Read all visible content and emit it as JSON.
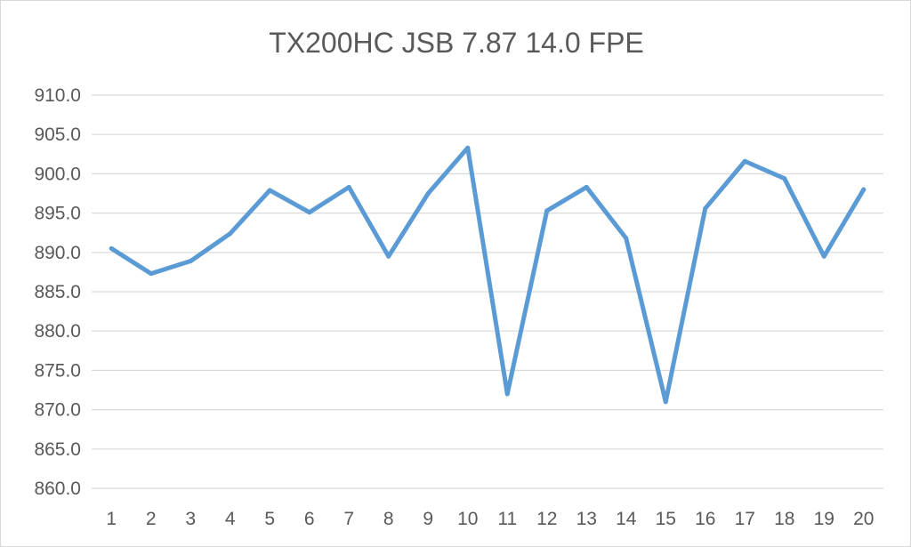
{
  "chart_data": {
    "type": "line",
    "title": "TX200HC JSB 7.87 14.0 FPE",
    "xlabel": "",
    "ylabel": "",
    "x": [
      1,
      2,
      3,
      4,
      5,
      6,
      7,
      8,
      9,
      10,
      11,
      12,
      13,
      14,
      15,
      16,
      17,
      18,
      19,
      20
    ],
    "series": [
      {
        "values": [
          890.5,
          887.3,
          888.9,
          892.4,
          897.9,
          895.1,
          898.3,
          889.5,
          897.5,
          903.3,
          872.0,
          895.3,
          898.3,
          891.8,
          871.0,
          895.6,
          901.6,
          899.4,
          889.5,
          898.0
        ],
        "color": "#5b9bd5"
      }
    ],
    "ylim": [
      860,
      910
    ],
    "ytick_step": 5,
    "ytick_decimals": 1,
    "grid": true,
    "legend": "none"
  }
}
